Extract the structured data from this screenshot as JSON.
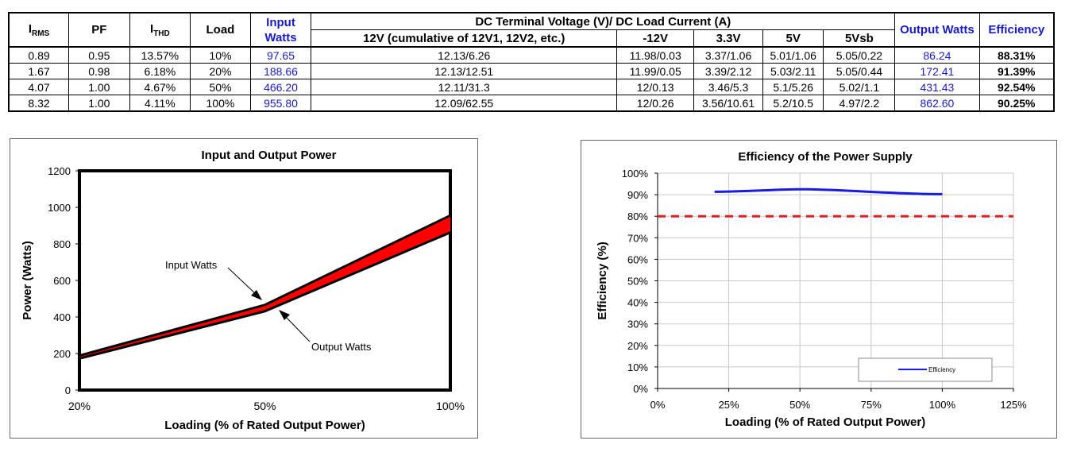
{
  "table": {
    "headers": {
      "irms_main": "I",
      "irms_sub": "RMS",
      "pf": "PF",
      "ithd_main": "I",
      "ithd_sub": "THD",
      "load": "Load",
      "input_watts": "Input Watts",
      "group": "DC Terminal Voltage (V)/ DC Load Current (A)",
      "v12": "12V (cumulative of 12V1, 12V2, etc.)",
      "vm12": "-12V",
      "v33": "3.3V",
      "v5": "5V",
      "v5sb": "5Vsb",
      "output_watts": "Output Watts",
      "efficiency": "Efficiency"
    },
    "rows": [
      {
        "irms": "0.89",
        "pf": "0.95",
        "ithd": "13.57%",
        "load": "10%",
        "input": "97.65",
        "v12": "12.13/6.26",
        "vm12": "11.98/0.03",
        "v33": "3.37/1.06",
        "v5": "5.01/1.06",
        "v5sb": "5.05/0.22",
        "output": "86.24",
        "eff": "88.31%"
      },
      {
        "irms": "1.67",
        "pf": "0.98",
        "ithd": "6.18%",
        "load": "20%",
        "input": "188.66",
        "v12": "12.13/12.51",
        "vm12": "11.99/0.05",
        "v33": "3.39/2.12",
        "v5": "5.03/2.11",
        "v5sb": "5.05/0.44",
        "output": "172.41",
        "eff": "91.39%"
      },
      {
        "irms": "4.07",
        "pf": "1.00",
        "ithd": "4.67%",
        "load": "50%",
        "input": "466.20",
        "v12": "12.11/31.3",
        "vm12": "12/0.13",
        "v33": "3.46/5.3",
        "v5": "5.1/5.26",
        "v5sb": "5.02/1.1",
        "output": "431.43",
        "eff": "92.54%"
      },
      {
        "irms": "8.32",
        "pf": "1.00",
        "ithd": "4.11%",
        "load": "100%",
        "input": "955.80",
        "v12": "12.09/62.55",
        "vm12": "12/0.26",
        "v33": "3.56/10.61",
        "v5": "5.2/10.5",
        "v5sb": "4.97/2.2",
        "output": "862.60",
        "eff": "90.25%"
      }
    ]
  },
  "colors": {
    "input_output_fill": "#ff0000",
    "efficiency_line": "#1a1ae6",
    "threshold_line": "#e02020",
    "blue_text": "#1a1ac8"
  },
  "chart_data": [
    {
      "type": "area",
      "title": "Input and Output Power",
      "xlabel": "Loading (% of Rated Output Power)",
      "ylabel": "Power (Watts)",
      "categories": [
        "20%",
        "50%",
        "100%"
      ],
      "ylim": [
        0,
        1200
      ],
      "yticks": [
        0,
        200,
        400,
        600,
        800,
        1000,
        1200
      ],
      "ytick_labels": [
        "0",
        "200",
        "400",
        "600",
        "800",
        "1000",
        "1200"
      ],
      "series": [
        {
          "name": "Input Watts",
          "values": [
            188.66,
            466.2,
            955.8
          ]
        },
        {
          "name": "Output Watts",
          "values": [
            172.41,
            431.43,
            862.6
          ]
        }
      ],
      "annotations": [
        "Input Watts",
        "Output Watts"
      ],
      "grid": false
    },
    {
      "type": "line",
      "title": "Efficiency of the Power Supply",
      "xlabel": "Loading (% of Rated Output Power)",
      "ylabel": "Efficiency (%)",
      "xlim": [
        0,
        125
      ],
      "xticks": [
        0,
        25,
        50,
        75,
        100,
        125
      ],
      "xtick_labels": [
        "0%",
        "25%",
        "50%",
        "75%",
        "100%",
        "125%"
      ],
      "ylim": [
        0,
        100
      ],
      "yticks": [
        0,
        10,
        20,
        30,
        40,
        50,
        60,
        70,
        80,
        90,
        100
      ],
      "ytick_labels": [
        "0%",
        "10%",
        "20%",
        "30%",
        "40%",
        "50%",
        "60%",
        "70%",
        "80%",
        "90%",
        "100%"
      ],
      "series": [
        {
          "name": "Efficiency",
          "x": [
            20,
            50,
            100
          ],
          "values": [
            91.39,
            92.54,
            90.25
          ]
        }
      ],
      "threshold": 80,
      "legend": "bottom-right",
      "grid": true
    }
  ]
}
